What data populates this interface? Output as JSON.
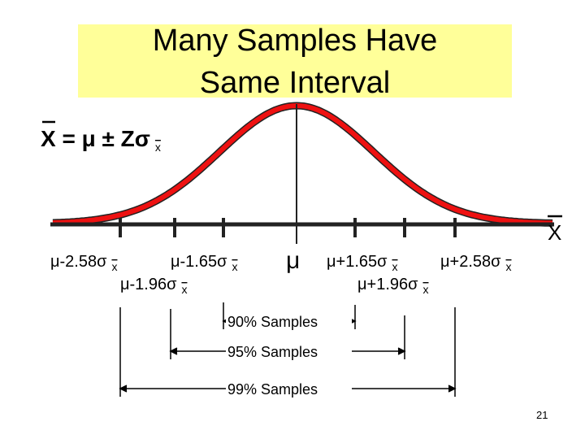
{
  "title": [
    "Many Samples Have",
    "Same Interval"
  ],
  "formula": {
    "text": "X = μ ± Zσ",
    "sub": "x"
  },
  "axis_label": "X",
  "center_label": "μ",
  "tick_labels": [
    {
      "text": "μ-2.58σ",
      "sub": "x"
    },
    {
      "text": "μ-1.65σ",
      "sub": "x"
    },
    {
      "text": "μ-1.96σ",
      "sub": "x"
    },
    {
      "text": "μ+1.65σ",
      "sub": "x"
    },
    {
      "text": "μ+2.58σ",
      "sub": "x"
    },
    {
      "text": "μ+1.96σ",
      "sub": "x"
    }
  ],
  "intervals": [
    "90% Samples",
    "95% Samples",
    "99% Samples"
  ],
  "page_number": "21"
}
